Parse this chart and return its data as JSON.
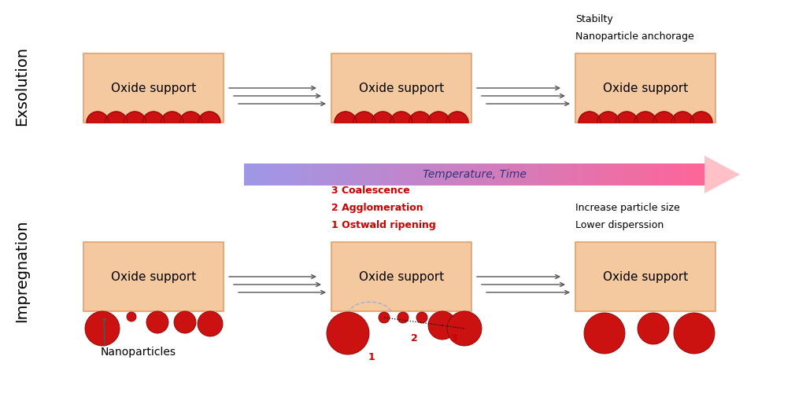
{
  "bg_color": "#ffffff",
  "oxide_color": "#f5c9a0",
  "oxide_edge_color": "#e0a070",
  "particle_color": "#cc1111",
  "particle_edge_color": "#880000",
  "label_imp": "Impregnation",
  "label_exs": "Exsolution",
  "label_nano": "Nanoparticles",
  "label_temp": "Temperature, Time",
  "label_1": "1 Ostwald ripening",
  "label_2": "2 Agglomeration",
  "label_3": "3 Coalescence",
  "label_lower": "Lower disperssion",
  "label_increase": "Increase particle size",
  "label_anchor": "Nanoparticle anchorage",
  "label_stability": "Stabilty"
}
